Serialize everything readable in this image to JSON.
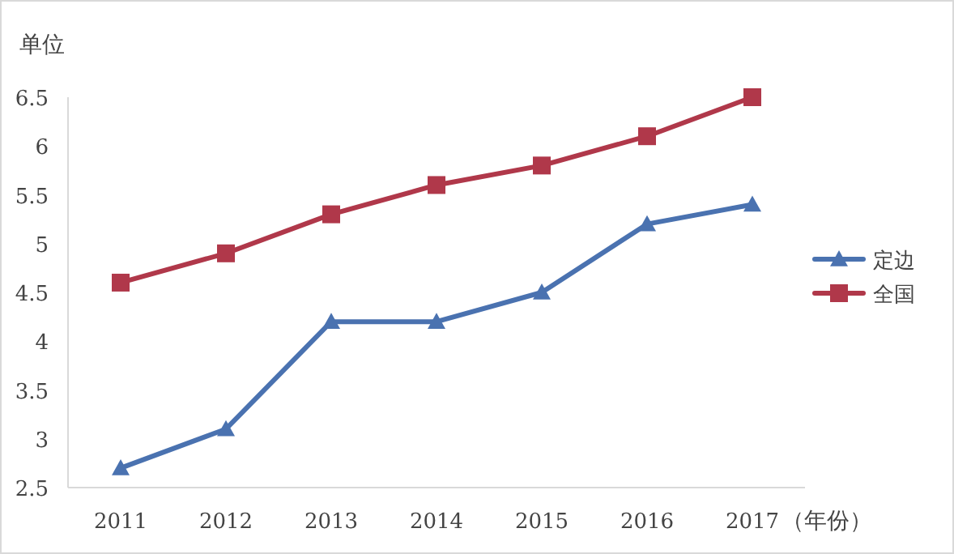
{
  "chart_data": {
    "type": "line",
    "ylabel": "单位",
    "xlabel": "（年份）",
    "categories": [
      "2011",
      "2012",
      "2013",
      "2014",
      "2015",
      "2016",
      "2017"
    ],
    "series": [
      {
        "name": "定边",
        "color": "#4a72b0",
        "marker": "triangle",
        "values": [
          2.7,
          3.1,
          4.2,
          4.2,
          4.5,
          5.2,
          5.4
        ]
      },
      {
        "name": "全国",
        "color": "#b0384a",
        "marker": "square",
        "values": [
          4.6,
          4.9,
          5.3,
          5.6,
          5.8,
          6.1,
          6.5
        ]
      }
    ],
    "ylim": [
      2.5,
      6.5
    ],
    "yticks": [
      2.5,
      3,
      3.5,
      4,
      4.5,
      5,
      5.5,
      6,
      6.5
    ],
    "grid": false,
    "legend": "right",
    "line_style": "solid"
  }
}
